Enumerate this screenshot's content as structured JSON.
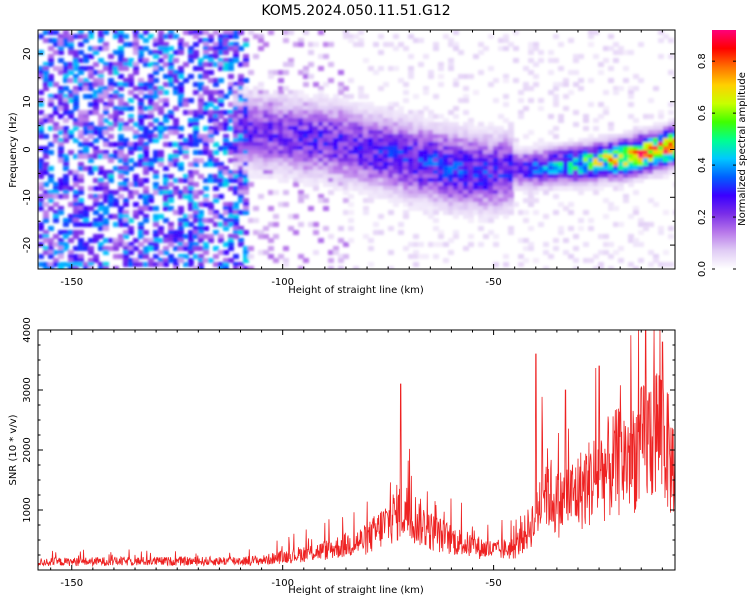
{
  "title": "KOM5.2024.050.11.51.G12",
  "chart_data": [
    {
      "type": "heatmap",
      "xlabel": "Height of straight line (km)",
      "ylabel": "Frequency (Hz)",
      "xlim": [
        -158,
        -7
      ],
      "ylim": [
        -25,
        25
      ],
      "xticks": [
        -150,
        -100,
        -50
      ],
      "yticks": [
        -20,
        -10,
        0,
        10,
        20
      ],
      "grid": false,
      "colorbar": {
        "label": "Normalized spectral amplitude",
        "range": [
          0.0,
          0.92
        ],
        "ticks": [
          0.0,
          0.2,
          0.4,
          0.6,
          0.8
        ],
        "colormap": [
          "#ffffff",
          "#e0ccf5",
          "#b878ea",
          "#7a2ee8",
          "#3a00ff",
          "#0060ff",
          "#00c8ff",
          "#00ff90",
          "#40ff00",
          "#c8ff00",
          "#ffd000",
          "#ff7000",
          "#ff0000",
          "#ff007a"
        ]
      },
      "ridge": {
        "description_points_x": [
          -110,
          -100,
          -90,
          -80,
          -70,
          -60,
          -50,
          -45,
          -40,
          -30,
          -20,
          -10,
          -7
        ],
        "description_points_y": [
          4,
          3,
          2,
          0,
          -2,
          -4,
          -5,
          -4,
          -4,
          -3,
          -2,
          0,
          1
        ],
        "peak_amplitude_x": [
          -110,
          -80,
          -60,
          -45,
          -35,
          -25,
          -15,
          -7
        ],
        "peak_amplitude_v": [
          0.25,
          0.3,
          0.35,
          0.3,
          0.45,
          0.65,
          0.85,
          0.9
        ]
      }
    },
    {
      "type": "line",
      "xlabel": "Height of straight line (km)",
      "ylabel": "SNR (10 * v/v)",
      "xlim": [
        -158,
        -7
      ],
      "ylim": [
        0,
        4000
      ],
      "xticks": [
        -150,
        -100,
        -50
      ],
      "yticks": [
        1000,
        2000,
        3000,
        4000
      ],
      "grid": false,
      "color": "#ee2222",
      "envelope_x": [
        -158,
        -140,
        -120,
        -105,
        -100,
        -90,
        -80,
        -75,
        -72,
        -70,
        -65,
        -60,
        -55,
        -50,
        -45,
        -40,
        -38,
        -35,
        -30,
        -25,
        -20,
        -15,
        -12,
        -10,
        -8,
        -7
      ],
      "envelope_y": [
        180,
        200,
        200,
        220,
        300,
        450,
        700,
        1100,
        1400,
        1300,
        900,
        700,
        550,
        450,
        500,
        1200,
        2000,
        1500,
        1800,
        2200,
        2500,
        2800,
        3200,
        3300,
        2400,
        2600
      ],
      "peaks_x": [
        -72,
        -40,
        -33,
        -25,
        -14,
        -10
      ],
      "peaks_y": [
        3100,
        3600,
        3000,
        3400,
        4000,
        3800
      ]
    }
  ]
}
